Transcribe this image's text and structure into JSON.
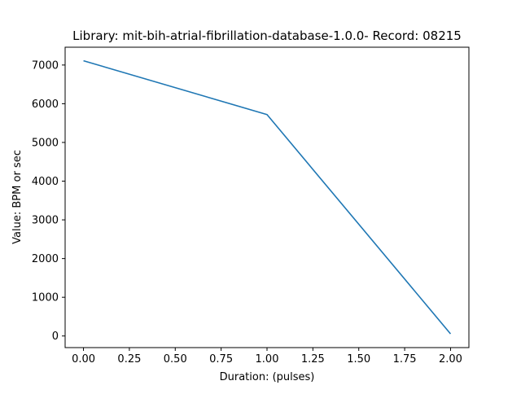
{
  "chart_data": {
    "type": "line",
    "title": "Library: mit-bih-atrial-fibrillation-database-1.0.0- Record: 08215",
    "xlabel": "Duration: (pulses)",
    "ylabel": "Value: BPM or sec",
    "xlim": [
      -0.1,
      2.1
    ],
    "ylim": [
      -300,
      7460
    ],
    "x_ticks": [
      0.0,
      0.25,
      0.5,
      0.75,
      1.0,
      1.25,
      1.5,
      1.75,
      2.0
    ],
    "x_tick_labels": [
      "0.00",
      "0.25",
      "0.50",
      "0.75",
      "1.00",
      "1.25",
      "1.50",
      "1.75",
      "2.00"
    ],
    "y_ticks": [
      0,
      1000,
      2000,
      3000,
      4000,
      5000,
      6000,
      7000
    ],
    "y_tick_labels": [
      "0",
      "1000",
      "2000",
      "3000",
      "4000",
      "5000",
      "6000",
      "7000"
    ],
    "grid": false,
    "series": [
      {
        "x": [
          0,
          1,
          2
        ],
        "values": [
          7110,
          5720,
          55
        ],
        "color": "#1f77b4"
      }
    ]
  }
}
